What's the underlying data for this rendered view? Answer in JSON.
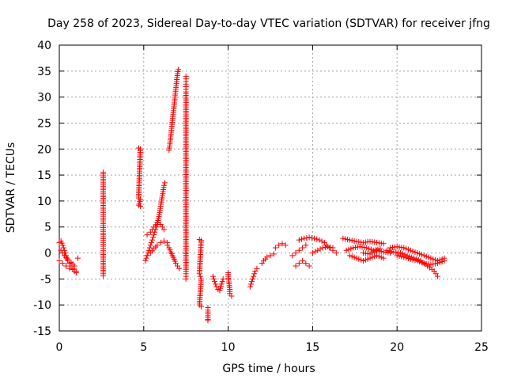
{
  "chart_data": {
    "type": "scatter",
    "title": "Day 258 of 2023, Sidereal Day-to-day VTEC variation (SDTVAR) for receiver jfng",
    "xlabel": "GPS time / hours",
    "ylabel": "SDTVAR / TECUs",
    "xlim": [
      0,
      25
    ],
    "ylim": [
      -15,
      40
    ],
    "xticks": [
      0,
      5,
      10,
      15,
      20,
      25
    ],
    "yticks": [
      -15,
      -10,
      -5,
      0,
      5,
      10,
      15,
      20,
      25,
      30,
      35,
      40
    ],
    "grid": true,
    "marker": "+",
    "series_color": "#ff0000",
    "series": [
      {
        "name": "SDTVAR",
        "segments": [
          [
            [
              0.0,
              2.0
            ],
            [
              0.1,
              2.3
            ],
            [
              0.2,
              1.5
            ],
            [
              0.3,
              0.5
            ],
            [
              0.4,
              -0.5
            ],
            [
              0.5,
              -1.5
            ],
            [
              0.6,
              -2.0
            ],
            [
              0.7,
              -2.5
            ],
            [
              0.8,
              -3.0
            ],
            [
              0.9,
              -3.5
            ],
            [
              1.0,
              -3.8
            ]
          ],
          [
            [
              0.0,
              -1.5
            ],
            [
              0.2,
              -2.0
            ],
            [
              0.4,
              -2.5
            ],
            [
              0.6,
              -3.0
            ],
            [
              0.8,
              -3.2
            ],
            [
              1.0,
              -3.5
            ]
          ],
          [
            [
              0.1,
              0.5
            ],
            [
              0.3,
              -0.5
            ],
            [
              0.5,
              -1.2
            ],
            [
              0.7,
              -1.8
            ],
            [
              0.9,
              -2.5
            ]
          ],
          [
            [
              1.1,
              -1.0
            ]
          ],
          [
            [
              2.6,
              15.5
            ],
            [
              2.6,
              15.2
            ],
            [
              2.6,
              7.8
            ],
            [
              2.6,
              3.8
            ],
            [
              2.6,
              3.5
            ],
            [
              2.6,
              1.3
            ],
            [
              2.6,
              0.0
            ],
            [
              2.6,
              -0.3
            ],
            [
              2.6,
              -4.0
            ],
            [
              2.6,
              -4.4
            ]
          ],
          [
            [
              4.7,
              20.2
            ],
            [
              4.8,
              20.0
            ],
            [
              4.7,
              10.6
            ],
            [
              4.8,
              10.3
            ],
            [
              4.7,
              9.2
            ],
            [
              4.8,
              9.0
            ]
          ],
          [
            [
              5.1,
              -1.5
            ],
            [
              5.2,
              -0.5
            ],
            [
              5.3,
              0.5
            ],
            [
              5.4,
              1.5
            ],
            [
              5.5,
              2.5
            ],
            [
              5.6,
              3.5
            ],
            [
              5.7,
              4.5
            ],
            [
              5.8,
              5.5
            ],
            [
              5.9,
              7.0
            ],
            [
              6.0,
              9.0
            ],
            [
              6.1,
              11.0
            ],
            [
              6.2,
              13.0
            ],
            [
              6.25,
              13.5
            ]
          ],
          [
            [
              5.2,
              3.5
            ],
            [
              5.4,
              4.0
            ],
            [
              5.6,
              5.0
            ],
            [
              5.8,
              5.8
            ],
            [
              6.0,
              5.5
            ],
            [
              6.2,
              4.5
            ]
          ],
          [
            [
              5.2,
              -0.5
            ],
            [
              5.4,
              0.0
            ],
            [
              5.6,
              0.8
            ],
            [
              5.8,
              1.5
            ],
            [
              6.0,
              2.0
            ],
            [
              6.2,
              2.3
            ],
            [
              6.4,
              2.0
            ]
          ],
          [
            [
              6.5,
              19.8
            ],
            [
              6.55,
              21.0
            ],
            [
              6.6,
              22.5
            ],
            [
              6.65,
              24.0
            ],
            [
              6.7,
              25.5
            ],
            [
              6.75,
              27.0
            ],
            [
              6.8,
              28.5
            ],
            [
              6.85,
              30.0
            ],
            [
              6.9,
              31.5
            ],
            [
              6.95,
              33.0
            ],
            [
              7.0,
              34.5
            ],
            [
              7.05,
              35.3
            ]
          ],
          [
            [
              6.4,
              1.5
            ],
            [
              6.5,
              1.0
            ],
            [
              6.6,
              0.2
            ],
            [
              6.7,
              -0.5
            ],
            [
              6.8,
              -1.2
            ],
            [
              6.9,
              -2.0
            ],
            [
              7.0,
              -2.5
            ],
            [
              7.1,
              -3.0
            ]
          ],
          [
            [
              7.5,
              34.0
            ],
            [
              7.5,
              33.0
            ],
            [
              7.5,
              32.0
            ],
            [
              7.5,
              31.0
            ],
            [
              7.5,
              0.2
            ],
            [
              7.5,
              -3.5
            ],
            [
              7.5,
              -4.5
            ],
            [
              7.5,
              -5.0
            ]
          ],
          [
            [
              8.3,
              2.6
            ],
            [
              8.4,
              2.4
            ],
            [
              8.3,
              -4.0
            ],
            [
              8.4,
              -5.0
            ],
            [
              8.3,
              -10.0
            ],
            [
              8.4,
              -10.3
            ]
          ],
          [
            [
              8.8,
              -10.5
            ],
            [
              8.8,
              -11.0
            ],
            [
              8.8,
              -12.8
            ],
            [
              8.8,
              -13.0
            ]
          ],
          [
            [
              9.1,
              -4.5
            ],
            [
              9.2,
              -5.5
            ],
            [
              9.3,
              -6.5
            ],
            [
              9.4,
              -7.0
            ],
            [
              9.5,
              -7.2
            ],
            [
              9.6,
              -6.0
            ],
            [
              9.7,
              -5.0
            ]
          ],
          [
            [
              10.0,
              -3.8
            ],
            [
              10.0,
              -4.5
            ],
            [
              10.1,
              -7.0
            ],
            [
              10.1,
              -7.8
            ],
            [
              10.2,
              -8.3
            ]
          ],
          [
            [
              11.3,
              -6.5
            ],
            [
              11.4,
              -5.5
            ],
            [
              11.5,
              -4.5
            ],
            [
              11.6,
              -3.5
            ],
            [
              11.7,
              -3.0
            ]
          ],
          [
            [
              12.0,
              -2.0
            ],
            [
              12.1,
              -1.5
            ],
            [
              12.3,
              -0.8
            ],
            [
              12.5,
              -0.5
            ],
            [
              12.7,
              -0.2
            ]
          ],
          [
            [
              12.8,
              1.0
            ],
            [
              13.0,
              1.5
            ],
            [
              13.2,
              1.8
            ],
            [
              13.4,
              1.5
            ]
          ],
          [
            [
              13.8,
              -0.5
            ],
            [
              14.0,
              0.0
            ],
            [
              14.2,
              0.5
            ],
            [
              14.4,
              1.0
            ],
            [
              14.6,
              1.5
            ]
          ],
          [
            [
              14.0,
              -2.5
            ],
            [
              14.2,
              -2.0
            ],
            [
              14.4,
              -1.5
            ],
            [
              14.6,
              -2.0
            ],
            [
              14.8,
              -2.5
            ]
          ],
          [
            [
              14.2,
              2.5
            ],
            [
              14.5,
              2.8
            ],
            [
              14.8,
              3.0
            ],
            [
              15.1,
              2.8
            ],
            [
              15.4,
              2.5
            ],
            [
              15.7,
              2.0
            ]
          ],
          [
            [
              15.0,
              0.0
            ],
            [
              15.3,
              0.5
            ],
            [
              15.6,
              1.0
            ],
            [
              15.9,
              1.2
            ],
            [
              16.2,
              1.0
            ]
          ],
          [
            [
              15.8,
              1.5
            ],
            [
              16.0,
              1.0
            ],
            [
              16.2,
              0.5
            ],
            [
              16.4,
              0.0
            ]
          ],
          [
            [
              16.8,
              2.8
            ],
            [
              17.2,
              2.5
            ],
            [
              17.6,
              2.2
            ],
            [
              18.0,
              2.0
            ],
            [
              18.4,
              2.2
            ],
            [
              18.8,
              2.0
            ],
            [
              19.2,
              1.8
            ]
          ],
          [
            [
              17.0,
              0.5
            ],
            [
              17.4,
              1.0
            ],
            [
              17.8,
              1.2
            ],
            [
              18.2,
              1.0
            ],
            [
              18.6,
              0.5
            ],
            [
              19.0,
              0.8
            ]
          ],
          [
            [
              17.2,
              -0.5
            ],
            [
              17.6,
              -1.0
            ],
            [
              18.0,
              -1.5
            ],
            [
              18.4,
              -1.0
            ],
            [
              18.8,
              -0.5
            ],
            [
              19.2,
              -1.0
            ]
          ],
          [
            [
              18.0,
              0.0
            ],
            [
              18.4,
              -0.2
            ],
            [
              18.8,
              0.5
            ],
            [
              19.2,
              0.2
            ],
            [
              19.6,
              0.0
            ]
          ],
          [
            [
              19.4,
              0.5
            ],
            [
              19.8,
              0.2
            ],
            [
              20.2,
              0.0
            ],
            [
              20.6,
              -0.5
            ],
            [
              21.0,
              -1.0
            ],
            [
              21.4,
              -1.5
            ],
            [
              21.8,
              -2.5
            ],
            [
              22.2,
              -3.5
            ],
            [
              22.4,
              -4.5
            ]
          ],
          [
            [
              19.6,
              1.0
            ],
            [
              20.0,
              1.2
            ],
            [
              20.4,
              1.0
            ],
            [
              20.8,
              0.5
            ],
            [
              21.2,
              0.0
            ],
            [
              21.6,
              -0.5
            ],
            [
              22.0,
              -1.0
            ],
            [
              22.4,
              -1.5
            ],
            [
              22.8,
              -1.0
            ]
          ],
          [
            [
              20.0,
              -0.5
            ],
            [
              20.4,
              -0.8
            ],
            [
              20.8,
              -1.2
            ],
            [
              21.2,
              -1.5
            ],
            [
              21.6,
              -2.0
            ],
            [
              22.0,
              -2.2
            ],
            [
              22.4,
              -2.0
            ],
            [
              22.8,
              -1.5
            ]
          ]
        ]
      }
    ]
  }
}
